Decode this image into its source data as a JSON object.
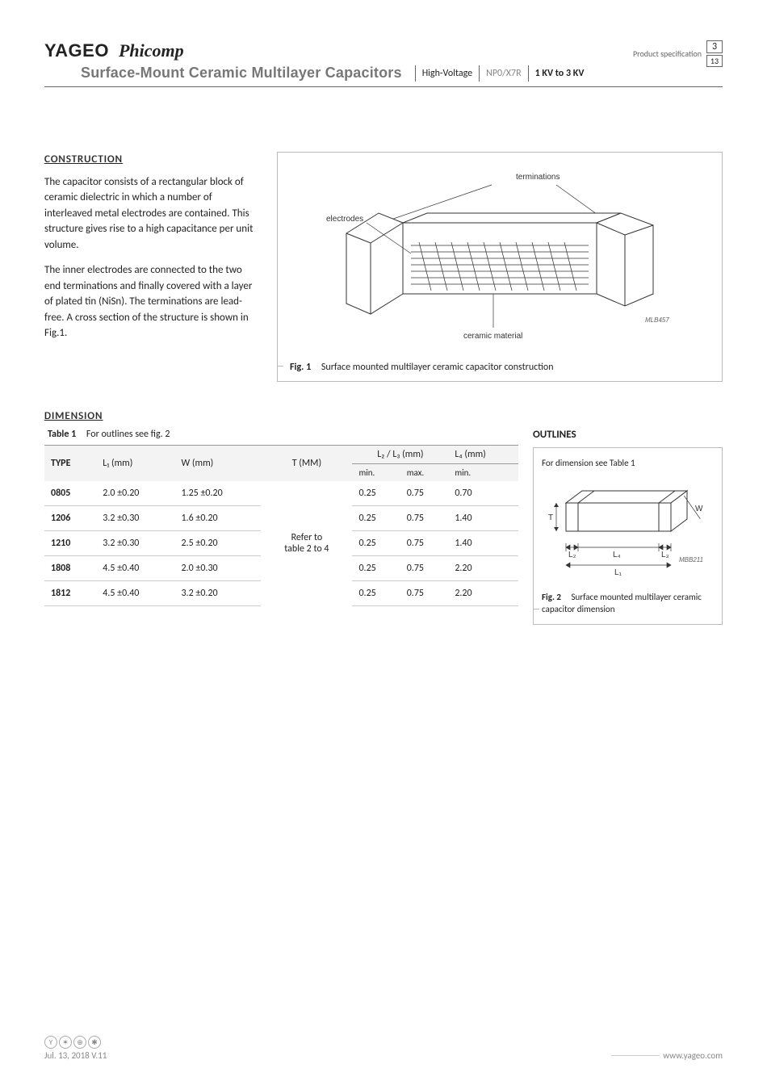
{
  "header": {
    "brand1": "YAGEO",
    "brand2": "Phicomp",
    "title": "Surface-Mount Ceramic Multilayer Capacitors",
    "seg1": "High-Voltage",
    "seg2": "NP0/X7R",
    "seg3": "1 KV to 3 KV",
    "prodspec": "Product specification",
    "page": "3",
    "total": "13"
  },
  "construction": {
    "heading": "CONSTRUCTION",
    "p1": "The capacitor consists of a rectangular block of ceramic dielectric in which a number of interleaved metal electrodes are contained. This structure gives rise to a high capacitance per unit volume.",
    "p2": "The inner electrodes are connected to the two end terminations and finally covered with a layer of plated tin (NiSn). The terminations are lead-free. A cross section of the structure is shown in Fig.1.",
    "fig": {
      "no": "Fig. 1",
      "caption": "Surface mounted multilayer ceramic capacitor construction",
      "lbl_terminations": "terminations",
      "lbl_electrodes": "electrodes",
      "lbl_ceramic": "ceramic material",
      "code": "MLB457"
    }
  },
  "dimension": {
    "heading": "DIMENSION",
    "tableCaptionNo": "Table 1",
    "tableCaption": "For outlines see fig. 2",
    "columns": {
      "type": "TYPE",
      "l1": "L₁ (mm)",
      "w": "W (mm)",
      "t": "T (MM)",
      "l23": "L₂ / L₃ (mm)",
      "l23min": "min.",
      "l23max": "max.",
      "l4": "L₄ (mm)",
      "l4min": "min."
    },
    "tNote": "Refer to table 2 to 4",
    "rows": [
      {
        "type": "0805",
        "l1": "2.0 ±0.20",
        "w": "1.25 ±0.20",
        "l23min": "0.25",
        "l23max": "0.75",
        "l4min": "0.70"
      },
      {
        "type": "1206",
        "l1": "3.2 ±0.30",
        "w": "1.6 ±0.20",
        "l23min": "0.25",
        "l23max": "0.75",
        "l4min": "1.40"
      },
      {
        "type": "1210",
        "l1": "3.2 ±0.30",
        "w": "2.5 ±0.20",
        "l23min": "0.25",
        "l23max": "0.75",
        "l4min": "1.40"
      },
      {
        "type": "1808",
        "l1": "4.5 ±0.40",
        "w": "2.0 ±0.30",
        "l23min": "0.25",
        "l23max": "0.75",
        "l4min": "2.20"
      },
      {
        "type": "1812",
        "l1": "4.5 ±0.40",
        "w": "3.2 ±0.20",
        "l23min": "0.25",
        "l23max": "0.75",
        "l4min": "2.20"
      }
    ],
    "outlines": {
      "title": "OUTLINES",
      "boxtext": "For dimension see Table 1",
      "figNo": "Fig. 2",
      "figCap": "Surface mounted multilayer ceramic capacitor dimension",
      "code": "MBB211",
      "L1": "L₁",
      "L2": "L₂",
      "L3": "L₃",
      "L4": "L₄",
      "T": "T",
      "W": "W"
    }
  },
  "footer": {
    "date": "Jul. 13, 2018 V.11",
    "site": "www.yageo.com"
  }
}
